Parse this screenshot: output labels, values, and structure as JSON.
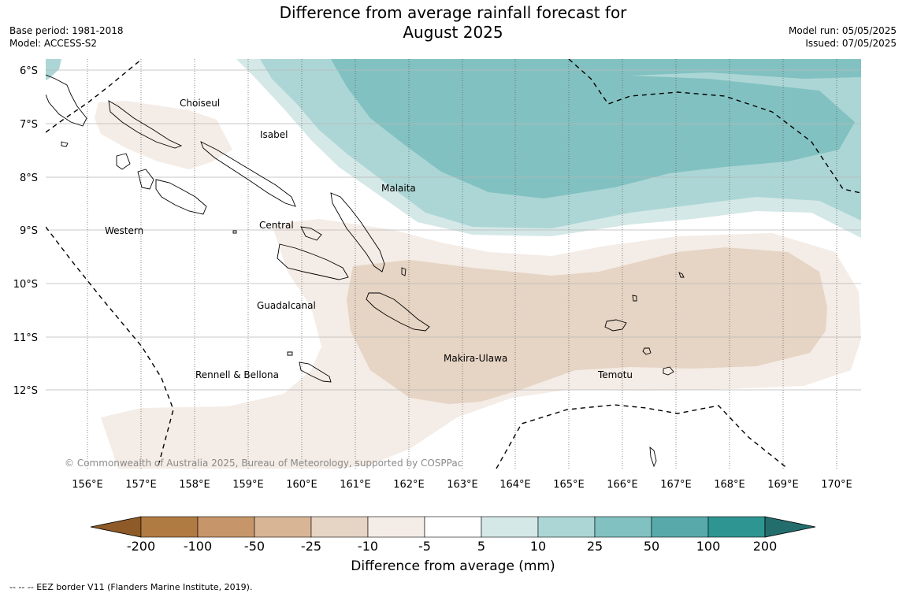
{
  "header": {
    "title_line1": "Difference from average rainfall forecast for",
    "title_line2": "August 2025",
    "base_period": "Base period: 1981-2018",
    "model": "Model: ACCESS-S2",
    "model_run": "Model run: 05/05/2025",
    "issued": "Issued: 07/05/2025"
  },
  "map": {
    "lat_labels": [
      "6°S",
      "7°S",
      "8°S",
      "9°S",
      "10°S",
      "11°S",
      "12°S"
    ],
    "lon_labels": [
      "156°E",
      "157°E",
      "158°E",
      "159°E",
      "160°E",
      "161°E",
      "162°E",
      "163°E",
      "164°E",
      "165°E",
      "166°E",
      "167°E",
      "168°E",
      "169°E",
      "170°E"
    ],
    "regions": [
      "Choiseul",
      "Isabel",
      "Malaita",
      "Central",
      "Western",
      "Guadalcanal",
      "Makira-Ulawa",
      "Rennell & Bellona",
      "Temotu"
    ],
    "copyright": "© Commonwealth of Australia 2025, Bureau of Meteorology, supported by COSPPac"
  },
  "colorbar": {
    "labels": [
      "-200",
      "-100",
      "-50",
      "-25",
      "-10",
      "-5",
      "5",
      "10",
      "25",
      "50",
      "100",
      "200"
    ],
    "colors": [
      "#8e5a27",
      "#b07a43",
      "#c6966a",
      "#d7b595",
      "#e6d4c4",
      "#f4ece6",
      "#ffffff",
      "#d4e8e7",
      "#acd6d5",
      "#82c1c1",
      "#58aaaa",
      "#2e9592",
      "#236e6c"
    ],
    "title": "Difference from average (mm)"
  },
  "footer": "--  --  -- EEZ border V11 (Flanders Marine Institute, 2019)."
}
